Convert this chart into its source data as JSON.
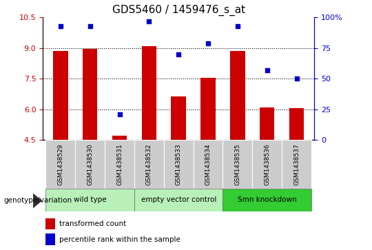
{
  "title": "GDS5460 / 1459476_s_at",
  "samples": [
    "GSM1438529",
    "GSM1438530",
    "GSM1438531",
    "GSM1438532",
    "GSM1438533",
    "GSM1438534",
    "GSM1438535",
    "GSM1438536",
    "GSM1438537"
  ],
  "bar_values": [
    8.85,
    8.95,
    4.7,
    9.1,
    6.65,
    7.55,
    8.85,
    6.1,
    6.05
  ],
  "dot_values": [
    93,
    93,
    21,
    97,
    70,
    79,
    93,
    57,
    50
  ],
  "bar_bottom": 4.5,
  "ylim_left": [
    4.5,
    10.5
  ],
  "ylim_right": [
    0,
    100
  ],
  "yticks_left": [
    4.5,
    6.0,
    7.5,
    9.0,
    10.5
  ],
  "yticks_right": [
    0,
    25,
    50,
    75,
    100
  ],
  "ytick_labels_right": [
    "0",
    "25",
    "50",
    "75",
    "100%"
  ],
  "bar_color": "#cc0000",
  "dot_color": "#0000cc",
  "grid_lines": [
    6.0,
    7.5,
    9.0
  ],
  "groups": [
    {
      "label": "wild type",
      "start": 0,
      "end": 3,
      "color": "#b8f0b8"
    },
    {
      "label": "empty vector control",
      "start": 3,
      "end": 6,
      "color": "#b8f0b8"
    },
    {
      "label": "Smn knockdown",
      "start": 6,
      "end": 9,
      "color": "#33cc33"
    }
  ],
  "xlabel_genotype": "genotype/variation",
  "legend_bar_label": "transformed count",
  "legend_dot_label": "percentile rank within the sample",
  "bar_width": 0.5,
  "title_fontsize": 11,
  "tick_fontsize": 8,
  "label_fontsize": 8,
  "sample_box_color": "#cccccc",
  "fig_bg": "#ffffff"
}
